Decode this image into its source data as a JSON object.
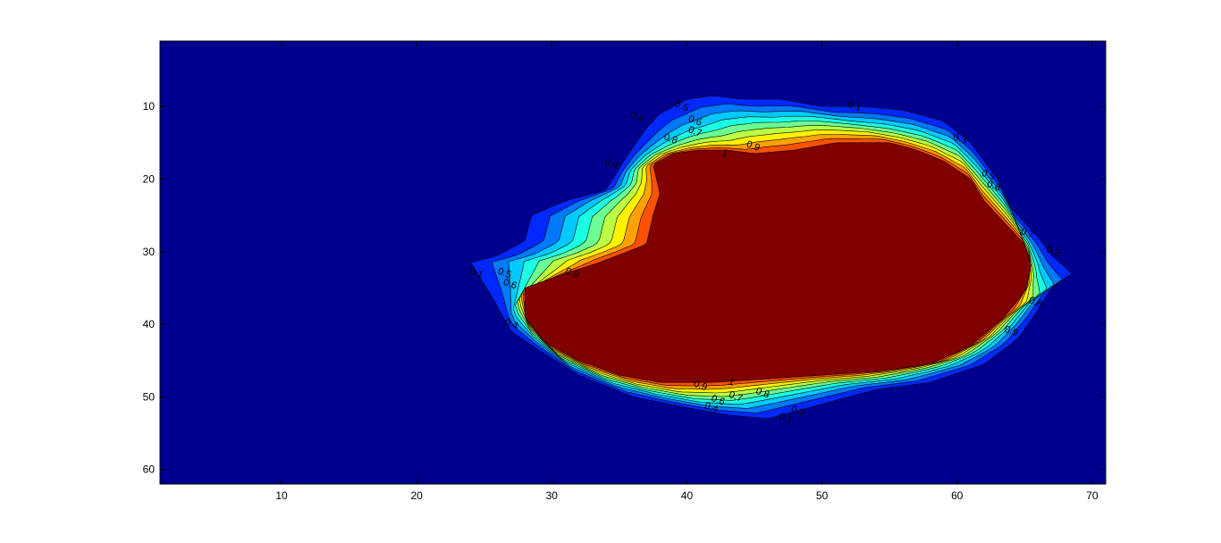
{
  "chart_data": {
    "type": "heatmap",
    "subtype": "filled-contour",
    "title": "",
    "xlabel": "",
    "ylabel": "",
    "xlim": [
      1,
      71
    ],
    "ylim": [
      62,
      1
    ],
    "y_reversed": true,
    "grid": false,
    "colormap": "jet",
    "contour_levels": [
      0.1,
      0.2,
      0.3,
      0.4,
      0.5,
      0.6,
      0.7,
      0.8,
      0.9,
      1
    ],
    "x_ticks": [
      10,
      20,
      30,
      40,
      50,
      60,
      70
    ],
    "y_ticks": [
      10,
      20,
      30,
      40,
      50,
      60
    ],
    "background_color": "#00008F",
    "core_color": "#800000",
    "region_outline": [
      [
        24,
        31.5
      ],
      [
        26,
        30.5
      ],
      [
        28,
        28.5
      ],
      [
        28.5,
        25
      ],
      [
        31,
        23
      ],
      [
        34,
        21.5
      ],
      [
        35.5,
        17
      ],
      [
        37,
        13
      ],
      [
        38,
        11
      ],
      [
        40,
        9
      ],
      [
        42,
        8.5
      ],
      [
        44,
        9
      ],
      [
        47,
        9
      ],
      [
        50,
        10
      ],
      [
        53,
        10
      ],
      [
        56,
        10.5
      ],
      [
        59,
        12
      ],
      [
        61,
        15
      ],
      [
        63,
        20
      ],
      [
        64,
        24
      ],
      [
        66,
        28
      ],
      [
        67,
        30.5
      ],
      [
        68.5,
        33
      ],
      [
        67,
        35
      ],
      [
        66,
        38
      ],
      [
        64.5,
        42
      ],
      [
        62,
        45.5
      ],
      [
        58,
        48
      ],
      [
        54,
        49
      ],
      [
        50,
        51
      ],
      [
        46,
        53
      ],
      [
        43,
        52.5
      ],
      [
        40,
        51.5
      ],
      [
        36,
        50
      ],
      [
        32,
        47
      ],
      [
        29,
        43.5
      ],
      [
        27,
        41
      ],
      [
        25.5,
        36
      ]
    ],
    "plateau_outline": [
      [
        28,
        35
      ],
      [
        31,
        33
      ],
      [
        33.5,
        31.5
      ],
      [
        37,
        29
      ],
      [
        37.5,
        25
      ],
      [
        38,
        22
      ],
      [
        37.5,
        18
      ],
      [
        39,
        16.5
      ],
      [
        41,
        16
      ],
      [
        43,
        16
      ],
      [
        45,
        16.5
      ],
      [
        48,
        16
      ],
      [
        51,
        15
      ],
      [
        55,
        15
      ],
      [
        57,
        16
      ],
      [
        59,
        17.5
      ],
      [
        61,
        20
      ],
      [
        62,
        23
      ],
      [
        63.5,
        26
      ],
      [
        65,
        29
      ],
      [
        65.5,
        32
      ],
      [
        65,
        35.5
      ],
      [
        63.5,
        39
      ],
      [
        61,
        43
      ],
      [
        58,
        45.5
      ],
      [
        54,
        46.5
      ],
      [
        50,
        47
      ],
      [
        46,
        47.5
      ],
      [
        42,
        48
      ],
      [
        38,
        48
      ],
      [
        35,
        47
      ],
      [
        32,
        45
      ],
      [
        29.5,
        42.5
      ],
      [
        28,
        39
      ]
    ],
    "contour_labels": [
      {
        "text": "0.4",
        "x": 36.3,
        "y": 11.5
      },
      {
        "text": "0.5",
        "x": 39.6,
        "y": 10
      },
      {
        "text": "0.6",
        "x": 40.6,
        "y": 12
      },
      {
        "text": "0.7",
        "x": 40.6,
        "y": 13.5
      },
      {
        "text": "0.8",
        "x": 38.8,
        "y": 14.5
      },
      {
        "text": "0.9",
        "x": 44.9,
        "y": 15.5
      },
      {
        "text": "1",
        "x": 42.8,
        "y": 16.5
      },
      {
        "text": "0.1",
        "x": 52.4,
        "y": 10
      },
      {
        "text": "0.3",
        "x": 60.2,
        "y": 14.5
      },
      {
        "text": "0.4",
        "x": 34.4,
        "y": 18
      },
      {
        "text": "0.5",
        "x": 62.3,
        "y": 19.5
      },
      {
        "text": "0.6",
        "x": 62.7,
        "y": 21
      },
      {
        "text": "0.7",
        "x": 65.2,
        "y": 27.5
      },
      {
        "text": "0.2",
        "x": 67.1,
        "y": 30
      },
      {
        "text": "0.1",
        "x": 24.4,
        "y": 33
      },
      {
        "text": "0.5",
        "x": 26.5,
        "y": 33
      },
      {
        "text": "0.6",
        "x": 26.9,
        "y": 34.5
      },
      {
        "text": "0.9",
        "x": 31.5,
        "y": 33
      },
      {
        "text": "0.8",
        "x": 65.8,
        "y": 37
      },
      {
        "text": "0.4",
        "x": 27,
        "y": 40
      },
      {
        "text": "0.9",
        "x": 64,
        "y": 41
      },
      {
        "text": "0.9",
        "x": 41,
        "y": 48.5
      },
      {
        "text": "1",
        "x": 43.3,
        "y": 48
      },
      {
        "text": "0.6",
        "x": 42.3,
        "y": 50.5
      },
      {
        "text": "0.7",
        "x": 43.6,
        "y": 50
      },
      {
        "text": "0.8",
        "x": 45.6,
        "y": 49.5
      },
      {
        "text": "0.4",
        "x": 41.8,
        "y": 51.5
      },
      {
        "text": "0.1",
        "x": 47.3,
        "y": 53
      },
      {
        "text": "0.2",
        "x": 48.2,
        "y": 52
      }
    ]
  }
}
